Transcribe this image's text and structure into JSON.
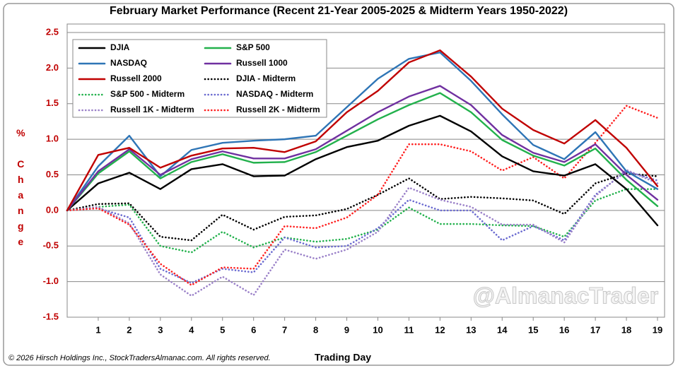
{
  "chart_data": {
    "type": "line",
    "title": "February Market Performance (Recent 21-Year 2005-2025 & Midterm Years 1950-2022)",
    "ylabel": "% Change",
    "xlabel": "Trading Day",
    "footnote": "© 2026 Hirsch Holdings Inc., StockTradersAlmanac.com. All rights reserved.",
    "watermark": "@AlmanacTrader",
    "legend": "upper left",
    "grid": true,
    "x": [
      0,
      1,
      2,
      3,
      4,
      5,
      6,
      7,
      8,
      9,
      10,
      11,
      12,
      13,
      14,
      15,
      16,
      17,
      18,
      19
    ],
    "xlim": [
      0,
      19
    ],
    "xticks": [
      1,
      2,
      3,
      4,
      5,
      6,
      7,
      8,
      9,
      10,
      11,
      12,
      13,
      14,
      15,
      16,
      17,
      18,
      19
    ],
    "ylim": [
      -1.5,
      2.5
    ],
    "yticks": [
      {
        "value": -1.5,
        "label": "-1.5"
      },
      {
        "value": -1,
        "label": "-1.0"
      },
      {
        "value": -0.5,
        "label": "-0.5"
      },
      {
        "value": 0,
        "label": "0.0"
      },
      {
        "value": 0.5,
        "label": "0.5"
      },
      {
        "value": 1,
        "label": "1.0"
      },
      {
        "value": 1.5,
        "label": "1.5"
      },
      {
        "value": 2,
        "label": "2.0"
      },
      {
        "value": 2.5,
        "label": "2.5"
      }
    ],
    "series": [
      {
        "name": "DJIA",
        "color": "#000000",
        "linestyle": "solid",
        "values": [
          0,
          0.38,
          0.53,
          0.3,
          0.58,
          0.65,
          0.48,
          0.49,
          0.72,
          0.89,
          0.98,
          1.19,
          1.33,
          1.11,
          0.76,
          0.55,
          0.49,
          0.65,
          0.3,
          -0.21
        ]
      },
      {
        "name": "S&P 500",
        "color": "#22b14c",
        "linestyle": "solid",
        "values": [
          0,
          0.52,
          0.83,
          0.45,
          0.68,
          0.79,
          0.67,
          0.68,
          0.82,
          1.05,
          1.28,
          1.48,
          1.65,
          1.38,
          0.99,
          0.77,
          0.63,
          0.87,
          0.43,
          0.06
        ]
      },
      {
        "name": "NASDAQ",
        "color": "#2e75b6",
        "linestyle": "solid",
        "values": [
          0,
          0.62,
          1.05,
          0.48,
          0.85,
          0.95,
          0.98,
          1.0,
          1.05,
          1.45,
          1.85,
          2.13,
          2.22,
          1.82,
          1.35,
          0.92,
          0.72,
          1.1,
          0.55,
          0.3
        ]
      },
      {
        "name": "Russell 1000",
        "color": "#7030a0",
        "linestyle": "solid",
        "values": [
          0,
          0.55,
          0.86,
          0.5,
          0.72,
          0.83,
          0.73,
          0.73,
          0.86,
          1.12,
          1.38,
          1.6,
          1.75,
          1.48,
          1.06,
          0.81,
          0.68,
          0.93,
          0.5,
          0.15
        ]
      },
      {
        "name": "Russell 2000",
        "color": "#c00000",
        "linestyle": "solid",
        "values": [
          0,
          0.78,
          0.88,
          0.6,
          0.77,
          0.87,
          0.88,
          0.82,
          0.97,
          1.38,
          1.68,
          2.08,
          2.25,
          1.88,
          1.43,
          1.13,
          0.94,
          1.27,
          0.88,
          0.34
        ]
      },
      {
        "name": "DJIA - Midterm",
        "color": "#000000",
        "linestyle": "dotted",
        "values": [
          0,
          0.09,
          0.1,
          -0.37,
          -0.42,
          -0.06,
          -0.27,
          -0.09,
          -0.07,
          0.02,
          0.22,
          0.45,
          0.16,
          0.19,
          0.17,
          0.14,
          -0.05,
          0.38,
          0.52,
          0.48
        ]
      },
      {
        "name": "S&P 500 - Midterm",
        "color": "#22b14c",
        "linestyle": "dotted",
        "values": [
          0,
          0.05,
          0.08,
          -0.5,
          -0.59,
          -0.3,
          -0.52,
          -0.38,
          -0.44,
          -0.4,
          -0.27,
          0.04,
          -0.19,
          -0.19,
          -0.21,
          -0.22,
          -0.37,
          0.14,
          0.3,
          0.3
        ]
      },
      {
        "name": "NASDAQ - Midterm",
        "color": "#6a6ad0",
        "linestyle": "dotted",
        "values": [
          0,
          0.03,
          -0.1,
          -0.82,
          -1.02,
          -0.82,
          -0.87,
          -0.38,
          -0.52,
          -0.5,
          -0.25,
          0.15,
          0.0,
          0.0,
          -0.42,
          -0.22,
          -0.42,
          0.22,
          0.55,
          0.42
        ]
      },
      {
        "name": "Russell 1K - Midterm",
        "color": "#9a80c8",
        "linestyle": "dotted",
        "values": [
          0,
          0.05,
          -0.18,
          -0.9,
          -1.2,
          -0.93,
          -1.19,
          -0.55,
          -0.68,
          -0.55,
          -0.3,
          0.32,
          0.15,
          0.05,
          -0.2,
          -0.2,
          -0.45,
          0.2,
          0.57,
          0.38
        ]
      },
      {
        "name": "Russell 2K - Midterm",
        "color": "#ff2020",
        "linestyle": "dotted",
        "values": [
          0,
          0.03,
          -0.2,
          -0.75,
          -1.05,
          -0.8,
          -0.82,
          -0.22,
          -0.25,
          -0.1,
          0.22,
          0.93,
          0.93,
          0.83,
          0.56,
          0.75,
          0.45,
          0.95,
          1.47,
          1.3
        ]
      }
    ]
  }
}
